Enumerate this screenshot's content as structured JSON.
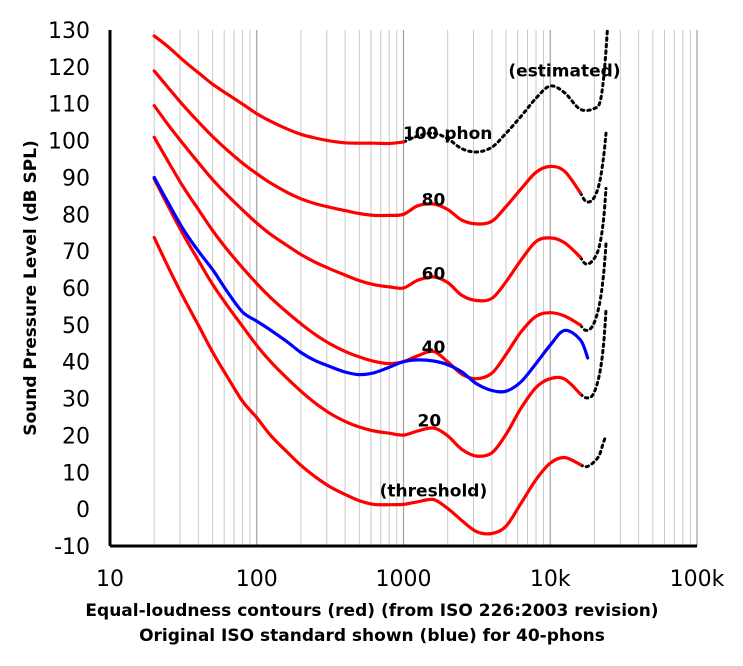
{
  "chart_data": {
    "type": "line",
    "title": "",
    "ylabel": "Sound Pressure Level (dB SPL)",
    "xlabel_line1": "Equal-loudness contours (red) (from ISO 226:2003 revision)",
    "xlabel_line2": "Original ISO standard shown (blue) for 40-phons",
    "x_scale": "log",
    "xlim": [
      10,
      100000
    ],
    "ylim": [
      -10,
      130
    ],
    "x_ticks": [
      {
        "value": 10,
        "label": "10"
      },
      {
        "value": 100,
        "label": "100"
      },
      {
        "value": 1000,
        "label": "1000"
      },
      {
        "value": 10000,
        "label": "10k"
      },
      {
        "value": 100000,
        "label": "100k"
      }
    ],
    "y_ticks": [
      -10,
      0,
      10,
      20,
      30,
      40,
      50,
      60,
      70,
      80,
      90,
      100,
      110,
      120,
      130
    ],
    "grid": true,
    "colors": {
      "iso2003": "#ff0000",
      "original": "#0000ff",
      "estimated": "#000000"
    },
    "annotations": [
      {
        "text": "(estimated)",
        "x": 12500,
        "y": 119
      },
      {
        "text": "100 phon",
        "x": 2000,
        "y": 102
      },
      {
        "text": "80",
        "x": 1600,
        "y": 84
      },
      {
        "text": "60",
        "x": 1600,
        "y": 64
      },
      {
        "text": "40",
        "x": 1600,
        "y": 44
      },
      {
        "text": "20",
        "x": 1500,
        "y": 24
      },
      {
        "text": "(threshold)",
        "x": 1600,
        "y": 5
      }
    ],
    "series": [
      {
        "phon": 100,
        "color": "#ff0000",
        "style": "solid",
        "x": [
          20,
          25,
          31.5,
          40,
          50,
          63,
          80,
          100,
          125,
          160,
          200,
          250,
          315,
          400,
          500,
          630,
          800,
          1000
        ],
        "y": [
          128.4,
          125.4,
          121.8,
          118.4,
          115.3,
          112.6,
          109.9,
          107.3,
          105.2,
          103.2,
          101.7,
          100.7,
          99.9,
          99.4,
          99.3,
          99.3,
          99.2,
          99.6
        ]
      },
      {
        "phon": 100,
        "color": "#000000",
        "style": "dotted",
        "x": [
          1000,
          1250,
          1600,
          2000,
          2500,
          3150,
          4000,
          5000,
          6300,
          8000,
          10000,
          12500,
          16000,
          20000,
          22000,
          23500,
          24500
        ],
        "y": [
          99.6,
          101.2,
          102.0,
          100.5,
          97.8,
          96.9,
          98.2,
          102.0,
          106.5,
          111.5,
          114.8,
          113.0,
          108.5,
          108.7,
          111,
          120,
          130
        ]
      },
      {
        "phon": 80,
        "color": "#ff0000",
        "style": "solid",
        "x": [
          20,
          25,
          31.5,
          40,
          50,
          63,
          80,
          100,
          125,
          160,
          200,
          250,
          315,
          400,
          500,
          630,
          800,
          1000,
          1250,
          1600,
          2000,
          2500,
          3150,
          4000,
          5000,
          6300,
          8000,
          10000,
          12500,
          16000
        ],
        "y": [
          118.9,
          114.3,
          109.6,
          105.1,
          101.1,
          97.4,
          93.9,
          91.0,
          88.4,
          86.0,
          84.2,
          82.9,
          81.9,
          81.0,
          80.2,
          79.7,
          79.7,
          80.0,
          82.3,
          82.8,
          81.3,
          78.4,
          77.4,
          78.1,
          82.1,
          86.8,
          91.4,
          93.0,
          91.7,
          85.9
        ]
      },
      {
        "phon": 80,
        "color": "#000000",
        "style": "dotted",
        "x": [
          16000,
          17500,
          19500,
          21500,
          23000,
          24000
        ],
        "y": [
          85.9,
          83.5,
          84.0,
          88.0,
          95.0,
          102.0
        ]
      },
      {
        "phon": 60,
        "color": "#ff0000",
        "style": "solid",
        "x": [
          20,
          25,
          31.5,
          40,
          50,
          63,
          80,
          100,
          125,
          160,
          200,
          250,
          315,
          400,
          500,
          630,
          800,
          1000,
          1250,
          1600,
          2000,
          2500,
          3150,
          4000,
          5000,
          6300,
          8000,
          10000,
          12500,
          16000
        ],
        "y": [
          109.5,
          104.2,
          99.1,
          94.0,
          89.4,
          85.2,
          81.2,
          77.6,
          74.5,
          71.6,
          69.1,
          67.0,
          65.2,
          63.5,
          62.0,
          60.9,
          60.3,
          60.0,
          62.1,
          63.0,
          61.5,
          58.0,
          56.6,
          57.2,
          61.7,
          67.5,
          72.6,
          73.6,
          72.3,
          68.4
        ]
      },
      {
        "phon": 60,
        "color": "#000000",
        "style": "dotted",
        "x": [
          16000,
          17500,
          19500,
          21500,
          23000,
          24000
        ],
        "y": [
          68.4,
          66.5,
          67.5,
          71.0,
          78.0,
          87.0
        ]
      },
      {
        "phon": 40,
        "color": "#ff0000",
        "style": "solid",
        "x": [
          20,
          25,
          31.5,
          40,
          50,
          63,
          80,
          100,
          125,
          160,
          200,
          250,
          315,
          400,
          500,
          630,
          800,
          1000,
          1250,
          1600,
          2000,
          2500,
          3150,
          4000,
          5000,
          6300,
          8000,
          10000,
          12500,
          16000
        ],
        "y": [
          100.9,
          94.2,
          87.5,
          81.3,
          75.6,
          70.4,
          65.5,
          61.2,
          57.3,
          53.5,
          50.3,
          47.4,
          44.9,
          42.8,
          41.3,
          40.1,
          39.5,
          40.0,
          41.6,
          42.8,
          40.0,
          36.6,
          35.4,
          36.9,
          42.0,
          48.0,
          52.3,
          53.3,
          52.4,
          50.0
        ]
      },
      {
        "phon": 40,
        "color": "#000000",
        "style": "dotted",
        "x": [
          16000,
          17500,
          19500,
          21500,
          23000,
          24000
        ],
        "y": [
          50.0,
          48.5,
          49.8,
          55.0,
          63.0,
          72.0
        ]
      },
      {
        "phon": 20,
        "color": "#ff0000",
        "style": "solid",
        "x": [
          20,
          25,
          31.5,
          40,
          50,
          63,
          80,
          100,
          125,
          160,
          200,
          250,
          315,
          400,
          500,
          630,
          800,
          1000,
          1250,
          1600,
          2000,
          2500,
          3150,
          4000,
          5000,
          6300,
          8000,
          10000,
          12500,
          16000
        ],
        "y": [
          89.6,
          82.1,
          74.6,
          67.5,
          61.0,
          55.2,
          49.6,
          44.4,
          39.9,
          35.6,
          32.0,
          28.8,
          26.0,
          23.8,
          22.3,
          21.2,
          20.6,
          20.1,
          21.2,
          22.0,
          19.9,
          16.2,
          14.4,
          15.3,
          20.3,
          27.3,
          33.0,
          35.4,
          35.3,
          31.3
        ]
      },
      {
        "phon": 20,
        "color": "#000000",
        "style": "dotted",
        "x": [
          16000,
          17500,
          19500,
          21500,
          23000,
          24000
        ],
        "y": [
          31.3,
          30.2,
          31.0,
          36.0,
          44.0,
          54.0
        ]
      },
      {
        "phon": 0,
        "color": "#ff0000",
        "style": "solid",
        "x": [
          20,
          25,
          31.5,
          40,
          50,
          63,
          80,
          100,
          125,
          160,
          200,
          250,
          315,
          400,
          500,
          630,
          800,
          1000,
          1250,
          1600,
          2000,
          2500,
          3150,
          4000,
          5000,
          6300,
          8000,
          10000,
          12500,
          16000
        ],
        "y": [
          73.7,
          65.6,
          57.6,
          49.9,
          42.6,
          35.9,
          29.3,
          24.8,
          19.9,
          15.6,
          11.9,
          8.8,
          6.1,
          4.0,
          2.3,
          1.3,
          1.2,
          1.3,
          2.0,
          2.6,
          0.2,
          -3.1,
          -6.1,
          -6.6,
          -4.6,
          1.5,
          8.0,
          12.5,
          14.0,
          12.1
        ]
      },
      {
        "phon": 0,
        "color": "#000000",
        "style": "dotted",
        "x": [
          16000,
          17500,
          19500,
          21500,
          23000,
          24000
        ],
        "y": [
          12.1,
          11.5,
          12.5,
          14.5,
          18.0,
          20.0
        ]
      },
      {
        "name": "Original ISO standard (40 phon)",
        "color": "#0000ff",
        "style": "solid",
        "x": [
          20,
          25,
          31.5,
          40,
          50,
          63,
          80,
          100,
          125,
          160,
          200,
          250,
          315,
          400,
          500,
          630,
          800,
          1000,
          1250,
          1600,
          2000,
          2500,
          3150,
          4000,
          5000,
          6300,
          8000,
          10000,
          12500,
          16000,
          18000
        ],
        "y": [
          90.0,
          83.0,
          76.0,
          70.0,
          65.0,
          59.0,
          53.5,
          51.0,
          48.5,
          45.5,
          42.5,
          40.3,
          38.7,
          37.2,
          36.5,
          37.0,
          38.5,
          40.0,
          40.5,
          40.2,
          39.2,
          37.2,
          34.0,
          32.2,
          32.0,
          34.5,
          39.5,
          44.5,
          48.5,
          46.0,
          41.0
        ]
      }
    ]
  }
}
